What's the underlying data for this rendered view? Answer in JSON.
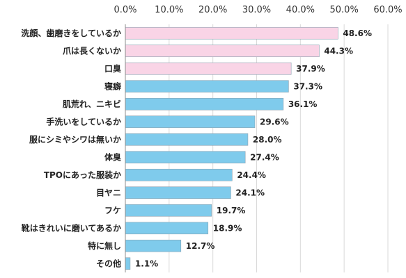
{
  "chart_data": {
    "type": "bar",
    "orientation": "horizontal",
    "title": "",
    "xlabel": "",
    "ylabel": "",
    "xlim": [
      0,
      60
    ],
    "x_ticks": [
      "0.0%",
      "10.0%",
      "20.0%",
      "30.0%",
      "40.0%",
      "50.0%",
      "60.0%"
    ],
    "x_axis_position": "top",
    "grid": true,
    "legend": "none",
    "colors": {
      "highlight": "#f9d4e6",
      "default": "#7fcbec",
      "border": "#8aa0b0"
    },
    "categories": [
      "洗顔、歯磨きをしているか",
      "爪は長くないか",
      "口臭",
      "寝癖",
      "肌荒れ、ニキビ",
      "手洗いをしているか",
      "服にシミやシワは無いか",
      "体臭",
      "TPOにあった服装か",
      "目ヤニ",
      "フケ",
      "靴はきれいに磨いてあるか",
      "特に無し",
      "その他"
    ],
    "values": [
      48.6,
      44.3,
      37.9,
      37.3,
      36.1,
      29.6,
      28.0,
      27.4,
      24.4,
      24.1,
      19.7,
      18.9,
      12.7,
      1.1
    ],
    "value_labels": [
      "48.6%",
      "44.3%",
      "37.9%",
      "37.3%",
      "36.1%",
      "29.6%",
      "28.0%",
      "27.4%",
      "24.4%",
      "24.1%",
      "19.7%",
      "18.9%",
      "12.7%",
      "1.1%"
    ],
    "highlighted": [
      true,
      true,
      true,
      false,
      false,
      false,
      false,
      false,
      false,
      false,
      false,
      false,
      false,
      false
    ]
  }
}
